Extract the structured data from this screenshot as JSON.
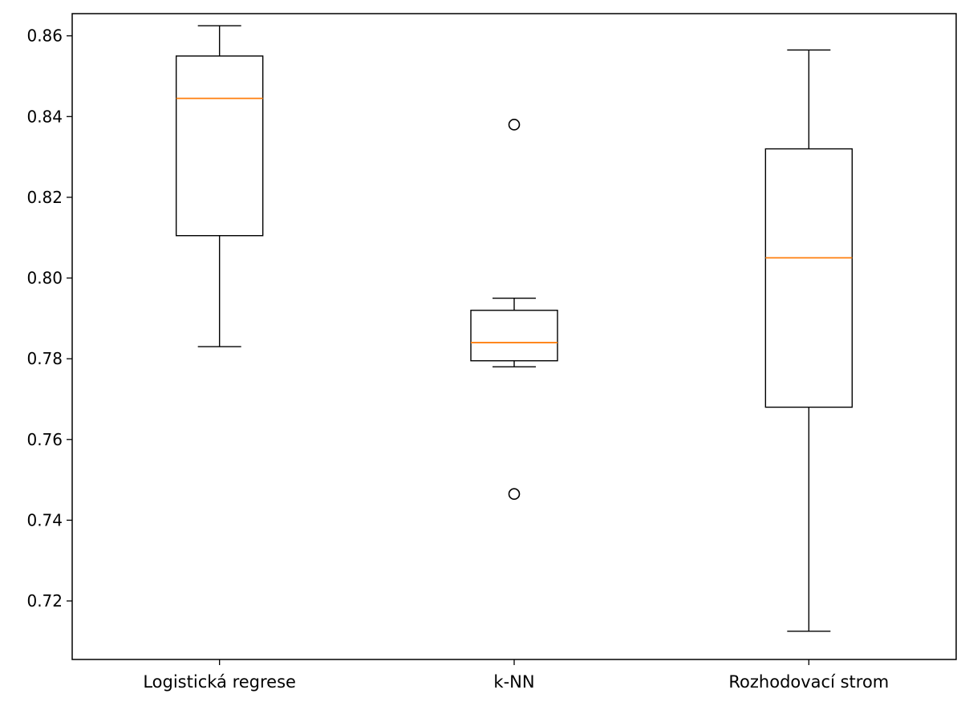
{
  "chart_data": {
    "type": "boxplot",
    "title": "",
    "xlabel": "",
    "ylabel": "",
    "ylim": [
      0.7055,
      0.8655
    ],
    "yticks": [
      0.72,
      0.74,
      0.76,
      0.78,
      0.8,
      0.82,
      0.84,
      0.86
    ],
    "ytick_labels": [
      "0.72",
      "0.74",
      "0.76",
      "0.78",
      "0.80",
      "0.82",
      "0.84",
      "0.86"
    ],
    "grid": false,
    "categories": [
      "Logistická regrese",
      "k-NN",
      "Rozhodovací strom"
    ],
    "boxes": [
      {
        "category": "Logistická regrese",
        "whisker_low": 0.783,
        "q1": 0.8105,
        "median": 0.8445,
        "q3": 0.855,
        "whisker_high": 0.8625,
        "outliers": []
      },
      {
        "category": "k-NN",
        "whisker_low": 0.778,
        "q1": 0.7795,
        "median": 0.784,
        "q3": 0.792,
        "whisker_high": 0.795,
        "outliers": [
          0.7465,
          0.838
        ]
      },
      {
        "category": "Rozhodovací strom",
        "whisker_low": 0.7125,
        "q1": 0.768,
        "median": 0.805,
        "q3": 0.832,
        "whisker_high": 0.8565,
        "outliers": []
      }
    ],
    "colors": {
      "box": "#000000",
      "median": "#ff7f0e",
      "background": "#ffffff"
    }
  }
}
